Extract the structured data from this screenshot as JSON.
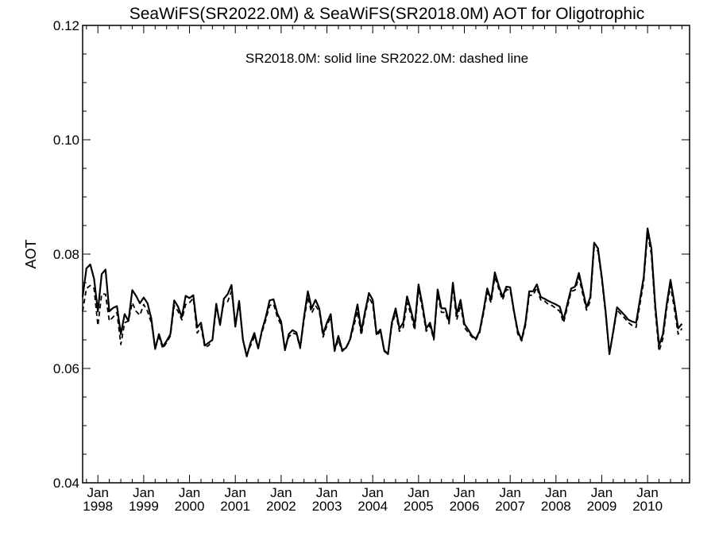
{
  "chart_data": {
    "type": "line",
    "title": "SeaWiFS(SR2022.0M) & SeaWiFS(SR2018.0M)  AOT for Oligotrophic",
    "annotation": "SR2018.0M: solid line   SR2022.0M: dashed line",
    "xlabel": "",
    "ylabel": "AOT",
    "x_start": "1997-09",
    "x_end": "2010-12",
    "x_step": "monthly",
    "xlim": [
      "1997-09",
      "2010-12"
    ],
    "ylim": [
      0.04,
      0.12
    ],
    "yticks": [
      "0.04",
      "0.06",
      "0.08",
      "0.10",
      "0.12"
    ],
    "xticks": [
      {
        "month": "Jan",
        "year": "1998",
        "date": "1998-01"
      },
      {
        "month": "Jan",
        "year": "1999",
        "date": "1999-01"
      },
      {
        "month": "Jan",
        "year": "2000",
        "date": "2000-01"
      },
      {
        "month": "Jan",
        "year": "2001",
        "date": "2001-01"
      },
      {
        "month": "Jan",
        "year": "2002",
        "date": "2002-01"
      },
      {
        "month": "Jan",
        "year": "2003",
        "date": "2003-01"
      },
      {
        "month": "Jan",
        "year": "2004",
        "date": "2004-01"
      },
      {
        "month": "Jan",
        "year": "2005",
        "date": "2005-01"
      },
      {
        "month": "Jan",
        "year": "2006",
        "date": "2006-01"
      },
      {
        "month": "Jan",
        "year": "2007",
        "date": "2007-01"
      },
      {
        "month": "Jan",
        "year": "2008",
        "date": "2008-01"
      },
      {
        "month": "Jan",
        "year": "2009",
        "date": "2009-01"
      },
      {
        "month": "Jan",
        "year": "2010",
        "date": "2010-01"
      }
    ],
    "grid": false,
    "series": [
      {
        "name": "SR2018.0M",
        "style": "solid",
        "values": [
          0.0725,
          0.0775,
          0.0782,
          0.0757,
          0.07,
          0.0765,
          0.0773,
          0.07,
          0.0706,
          0.0709,
          0.066,
          0.0695,
          0.0683,
          0.0737,
          0.0727,
          0.0714,
          0.0724,
          0.0714,
          0.0687,
          0.0634,
          0.066,
          0.0638,
          0.0648,
          0.066,
          0.0719,
          0.0708,
          0.069,
          0.0727,
          0.0723,
          0.0728,
          0.0672,
          0.068,
          0.064,
          0.0645,
          0.065,
          0.0713,
          0.0676,
          0.0722,
          0.073,
          0.0746,
          0.0673,
          0.0718,
          0.065,
          0.0621,
          0.0645,
          0.0662,
          0.0635,
          0.0667,
          0.069,
          0.0719,
          0.0721,
          0.0696,
          0.0682,
          0.0632,
          0.066,
          0.0667,
          0.0663,
          0.0637,
          0.069,
          0.0735,
          0.0705,
          0.072,
          0.0705,
          0.066,
          0.068,
          0.0695,
          0.0632,
          0.0657,
          0.0632,
          0.0636,
          0.065,
          0.068,
          0.0712,
          0.0665,
          0.07,
          0.0732,
          0.072,
          0.066,
          0.0668,
          0.0632,
          0.0625,
          0.068,
          0.0705,
          0.067,
          0.068,
          0.0726,
          0.0702,
          0.0675,
          0.0747,
          0.0712,
          0.067,
          0.068,
          0.0653,
          0.0738,
          0.0705,
          0.0705,
          0.0682,
          0.075,
          0.0695,
          0.072,
          0.0678,
          0.0668,
          0.0657,
          0.0652,
          0.0665,
          0.07,
          0.074,
          0.072,
          0.0768,
          0.0745,
          0.0725,
          0.0743,
          0.0742,
          0.07,
          0.0665,
          0.065,
          0.068,
          0.0735,
          0.0735,
          0.0747,
          0.0725,
          0.0722,
          0.0718,
          0.0715,
          0.0712,
          0.0708,
          0.0685,
          0.0713,
          0.074,
          0.0743,
          0.0767,
          0.0737,
          0.0707,
          0.0725,
          0.082,
          0.081,
          0.076,
          0.07,
          0.0625,
          0.0665,
          0.0707,
          0.07,
          0.0693,
          0.0685,
          0.0682,
          0.068,
          0.072,
          0.076,
          0.0845,
          0.081,
          0.071,
          0.064,
          0.066,
          0.0712,
          0.0755,
          0.0715,
          0.067,
          0.0678
        ]
      },
      {
        "name": "SR2022.0M",
        "style": "dashed",
        "values": [
          0.07,
          0.074,
          0.0745,
          0.074,
          0.0675,
          0.073,
          0.073,
          0.0683,
          0.069,
          0.0698,
          0.0642,
          0.068,
          0.0683,
          0.0715,
          0.07,
          0.0693,
          0.0712,
          0.07,
          0.068,
          0.0637,
          0.0655,
          0.0635,
          0.0645,
          0.0657,
          0.071,
          0.07,
          0.0685,
          0.0712,
          0.0715,
          0.0723,
          0.0662,
          0.0673,
          0.0637,
          0.064,
          0.065,
          0.0705,
          0.068,
          0.0715,
          0.0717,
          0.0735,
          0.068,
          0.0712,
          0.065,
          0.0625,
          0.064,
          0.0655,
          0.0637,
          0.0663,
          0.0685,
          0.071,
          0.0713,
          0.069,
          0.0676,
          0.0635,
          0.0655,
          0.0662,
          0.066,
          0.0635,
          0.0685,
          0.0725,
          0.0697,
          0.071,
          0.07,
          0.0655,
          0.0675,
          0.069,
          0.063,
          0.065,
          0.063,
          0.0636,
          0.0648,
          0.0673,
          0.07,
          0.0658,
          0.0695,
          0.0725,
          0.0712,
          0.0657,
          0.0665,
          0.063,
          0.0625,
          0.0675,
          0.0698,
          0.0665,
          0.0672,
          0.0715,
          0.0695,
          0.0667,
          0.0738,
          0.0705,
          0.0665,
          0.0675,
          0.065,
          0.073,
          0.0698,
          0.0698,
          0.0678,
          0.0742,
          0.0685,
          0.0712,
          0.0672,
          0.0663,
          0.0655,
          0.065,
          0.0662,
          0.0695,
          0.0733,
          0.0715,
          0.076,
          0.074,
          0.072,
          0.0738,
          0.0737,
          0.0698,
          0.066,
          0.0648,
          0.0675,
          0.0728,
          0.0728,
          0.0742,
          0.072,
          0.0718,
          0.0712,
          0.071,
          0.0705,
          0.07,
          0.068,
          0.0707,
          0.0735,
          0.0737,
          0.076,
          0.073,
          0.0702,
          0.0718,
          0.0812,
          0.0805,
          0.0755,
          0.0695,
          0.0625,
          0.0662,
          0.0702,
          0.0695,
          0.0688,
          0.068,
          0.0675,
          0.0672,
          0.0712,
          0.0752,
          0.0835,
          0.08,
          0.07,
          0.063,
          0.0652,
          0.0705,
          0.0745,
          0.0705,
          0.066,
          0.067
        ]
      }
    ]
  }
}
